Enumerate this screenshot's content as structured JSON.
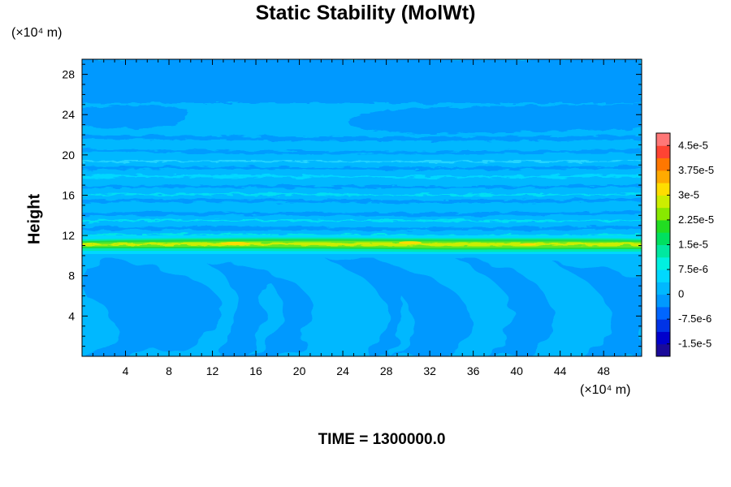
{
  "chart_data": {
    "type": "heatmap",
    "title": "Static Stability (MolWt)",
    "ylabel": "Height",
    "y_unit": "(×10⁴ m)",
    "x_unit": "(×10⁴ m)",
    "footer": "TIME = 1300000.0",
    "xlim": [
      0,
      51.5
    ],
    "ylim": [
      0,
      29.5
    ],
    "x_ticks": [
      4,
      8,
      12,
      16,
      20,
      24,
      28,
      32,
      36,
      40,
      44,
      48
    ],
    "x_tick_labels": [
      "4",
      "8",
      "12",
      "16",
      "20",
      "24",
      "28",
      "32",
      "36",
      "40",
      "44",
      "48"
    ],
    "y_ticks": [
      4,
      8,
      12,
      16,
      20,
      24,
      28
    ],
    "y_tick_labels": [
      "4",
      "8",
      "12",
      "16",
      "20",
      "24",
      "28"
    ],
    "colorbar": {
      "min": -1.875e-05,
      "max": 4.875e-05,
      "labels": [
        "4.5e-5",
        "3.75e-5",
        "3e-5",
        "2.25e-5",
        "1.5e-5",
        "7.5e-6",
        "0",
        "-7.5e-6",
        "-1.5e-5"
      ],
      "label_values": [
        4.5e-05,
        3.75e-05,
        3e-05,
        2.25e-05,
        1.5e-05,
        7.5e-06,
        0,
        -7.5e-06,
        -1.5e-05
      ],
      "colors": [
        "#1a0a99",
        "#0000cc",
        "#0033e6",
        "#0066ff",
        "#0099ff",
        "#00b8ff",
        "#00d8ff",
        "#00f0e0",
        "#00e8a0",
        "#00e060",
        "#22dd22",
        "#88e800",
        "#ccee00",
        "#ffdd00",
        "#ffaa00",
        "#ff7700",
        "#ff4433",
        "#ff7777"
      ]
    },
    "features": [
      {
        "name": "upper stratified band",
        "y_range": [
          25,
          29.5
        ],
        "value": 0
      },
      {
        "name": "mid layer",
        "y_range": [
          12,
          25
        ],
        "value": 3.75e-06
      },
      {
        "name": "stable interface band",
        "y": 11.4,
        "value": 2.25e-05
      },
      {
        "name": "lower turbulent layer",
        "y_range": [
          0,
          11
        ],
        "value": 0
      }
    ]
  }
}
